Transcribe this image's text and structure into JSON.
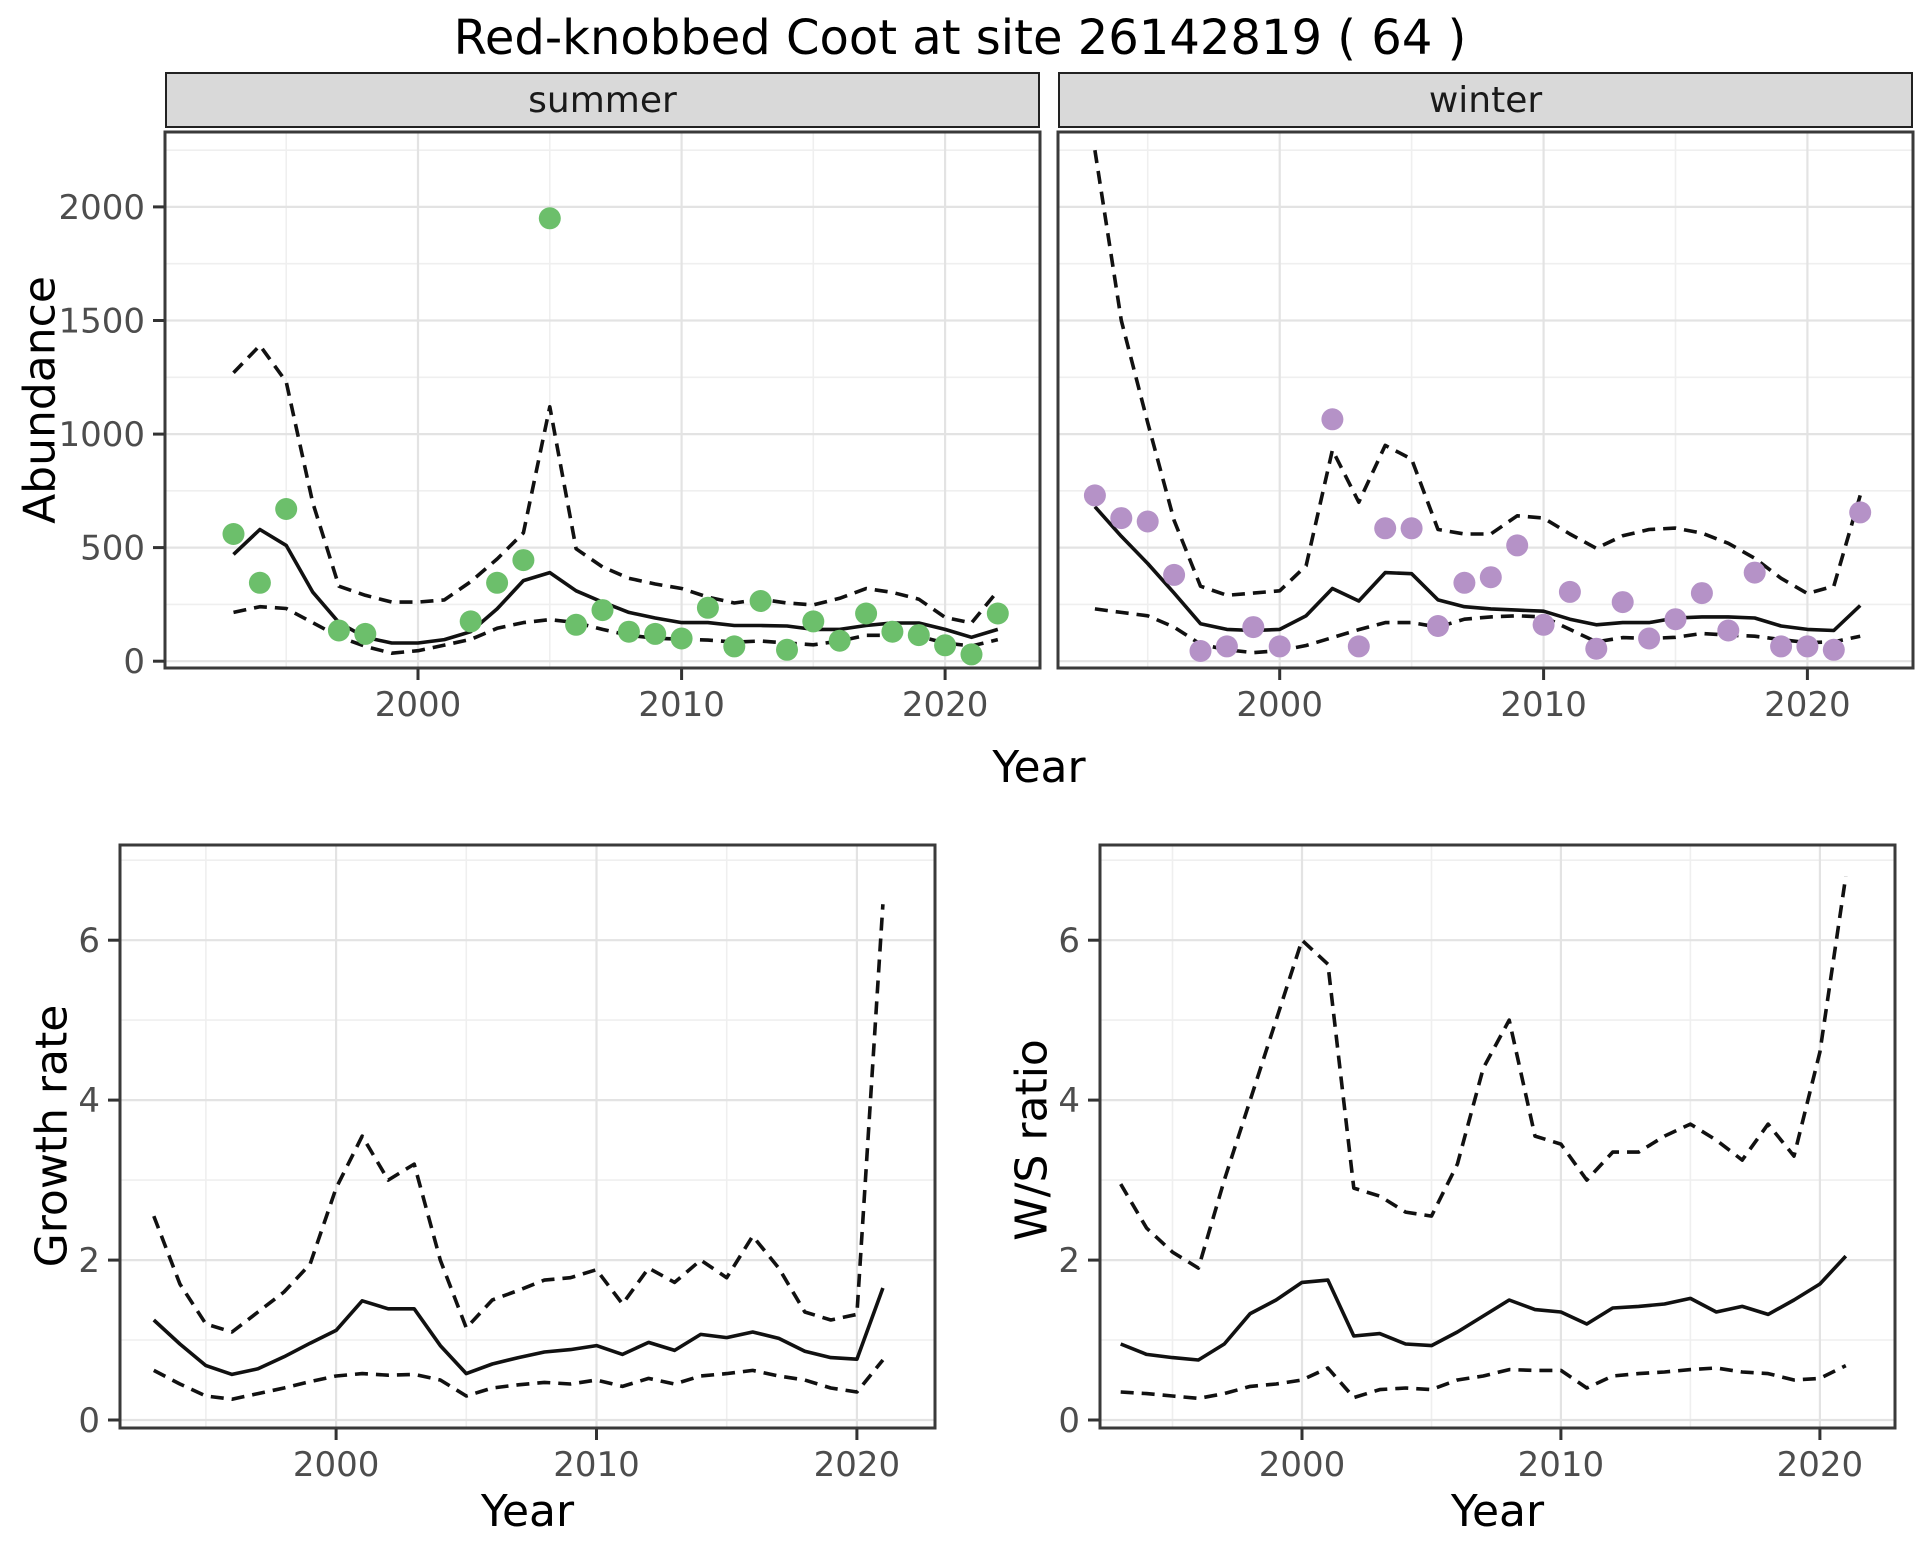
{
  "title": "Red-knobbed Coot at site 26142819 ( 64 )",
  "panels_strip": [
    "summer",
    "winter"
  ],
  "axis_titles": {
    "abundance": "Abundance",
    "year_top": "Year",
    "growth": "Growth rate",
    "year_growth": "Year",
    "ws": "W/S ratio",
    "year_ws": "Year"
  },
  "colors": {
    "summer_point": "#6cbf6b",
    "winter_point": "#b592c7",
    "line": "#111111",
    "strip_bg": "#d9d9d9",
    "grid_major": "#e3e3e3",
    "grid_minor": "#efefef",
    "panel_border": "#3a3a3a",
    "tick_label": "#4d4d4d"
  },
  "chart_data": [
    {
      "id": "abundance-summer",
      "type": "line+scatter",
      "facet": "summer",
      "ylabel": "Abundance",
      "xlabel": "Year",
      "x_domain": [
        1990.4,
        2023.6
      ],
      "y_domain": [
        -30,
        2330
      ],
      "x_major": [
        2000,
        2010,
        2020
      ],
      "x_minor": [
        1995,
        2005,
        2015
      ],
      "x_tick_labels": [
        "2000",
        "2010",
        "2020"
      ],
      "y_major": [
        0,
        500,
        1000,
        1500,
        2000
      ],
      "y_minor": [
        250,
        750,
        1250,
        1750,
        2250
      ],
      "y_tick_labels": [
        "0",
        "500",
        "1000",
        "1500",
        "2000"
      ],
      "years": [
        1993,
        1994,
        1995,
        1996,
        1997,
        1998,
        1999,
        2000,
        2001,
        2002,
        2003,
        2004,
        2005,
        2006,
        2007,
        2008,
        2009,
        2010,
        2011,
        2012,
        2013,
        2014,
        2015,
        2016,
        2017,
        2018,
        2019,
        2020,
        2021,
        2022
      ],
      "points": [
        560,
        345,
        670,
        null,
        135,
        120,
        null,
        null,
        null,
        175,
        345,
        445,
        1950,
        160,
        225,
        130,
        120,
        100,
        235,
        65,
        265,
        50,
        175,
        90,
        210,
        130,
        115,
        70,
        30,
        210
      ],
      "median": [
        470,
        580,
        510,
        305,
        170,
        105,
        80,
        80,
        95,
        130,
        230,
        355,
        390,
        310,
        260,
        215,
        190,
        170,
        170,
        157,
        157,
        155,
        140,
        140,
        157,
        168,
        168,
        140,
        105,
        140
      ],
      "upper": [
        1270,
        1390,
        1230,
        700,
        330,
        290,
        260,
        260,
        270,
        350,
        450,
        565,
        1120,
        495,
        415,
        365,
        340,
        320,
        282,
        256,
        273,
        256,
        248,
        277,
        320,
        303,
        273,
        193,
        168,
        310
      ],
      "lower": [
        215,
        240,
        232,
        170,
        108,
        65,
        35,
        46,
        71,
        96,
        145,
        170,
        183,
        170,
        140,
        114,
        101,
        97,
        93,
        84,
        89,
        80,
        72,
        89,
        114,
        114,
        110,
        80,
        67,
        95
      ],
      "point_color": "#6cbf6b"
    },
    {
      "id": "abundance-winter",
      "type": "line+scatter",
      "facet": "winter",
      "ylabel": "Abundance",
      "xlabel": "Year",
      "x_domain": [
        1991.6,
        2024.0
      ],
      "y_domain": [
        -30,
        2330
      ],
      "x_major": [
        2000,
        2010,
        2020
      ],
      "x_minor": [
        1995,
        2005,
        2015
      ],
      "x_tick_labels": [
        "2000",
        "2010",
        "2020"
      ],
      "y_major": [
        0,
        500,
        1000,
        1500,
        2000
      ],
      "y_minor": [
        250,
        750,
        1250,
        1750,
        2250
      ],
      "y_tick_labels": [],
      "years": [
        1993,
        1994,
        1995,
        1996,
        1997,
        1998,
        1999,
        2000,
        2001,
        2002,
        2003,
        2004,
        2005,
        2006,
        2007,
        2008,
        2009,
        2010,
        2011,
        2012,
        2013,
        2014,
        2015,
        2016,
        2017,
        2018,
        2019,
        2020,
        2021,
        2022
      ],
      "points": [
        730,
        630,
        615,
        380,
        45,
        65,
        150,
        65,
        null,
        1065,
        65,
        585,
        585,
        155,
        345,
        370,
        510,
        160,
        305,
        55,
        260,
        100,
        185,
        300,
        135,
        390,
        65,
        65,
        50,
        655
      ],
      "median": [
        680,
        550,
        430,
        300,
        165,
        140,
        135,
        140,
        200,
        320,
        265,
        390,
        385,
        270,
        240,
        230,
        225,
        220,
        185,
        160,
        170,
        170,
        190,
        195,
        195,
        190,
        155,
        140,
        135,
        245
      ],
      "upper": [
        2250,
        1500,
        1050,
        620,
        330,
        290,
        300,
        310,
        420,
        930,
        700,
        950,
        890,
        580,
        560,
        560,
        640,
        630,
        560,
        497,
        552,
        580,
        586,
        564,
        519,
        453,
        365,
        298,
        330,
        730
      ],
      "lower": [
        230,
        215,
        200,
        150,
        75,
        50,
        38,
        46,
        69,
        104,
        139,
        170,
        170,
        150,
        185,
        195,
        200,
        195,
        140,
        85,
        104,
        100,
        105,
        122,
        115,
        110,
        95,
        82,
        85,
        110
      ],
      "point_color": "#b592c7"
    },
    {
      "id": "growth-rate",
      "type": "line",
      "facet": null,
      "ylabel": "Growth rate",
      "xlabel": "Year",
      "x_domain": [
        1991.7,
        2023.0
      ],
      "y_domain": [
        -0.1,
        7.19
      ],
      "x_major": [
        2000,
        2010,
        2020
      ],
      "x_minor": [
        1995,
        2005,
        2015
      ],
      "x_tick_labels": [
        "2000",
        "2010",
        "2020"
      ],
      "y_major": [
        0,
        2,
        4,
        6
      ],
      "y_minor": [
        1,
        3,
        5,
        7
      ],
      "y_tick_labels": [
        "0",
        "2",
        "4",
        "6"
      ],
      "years": [
        1993,
        1994,
        1995,
        1996,
        1997,
        1998,
        1999,
        2000,
        2001,
        2002,
        2003,
        2004,
        2005,
        2006,
        2007,
        2008,
        2009,
        2010,
        2011,
        2012,
        2013,
        2014,
        2015,
        2016,
        2017,
        2018,
        2019,
        2020,
        2021
      ],
      "points": null,
      "median": [
        1.25,
        0.95,
        0.68,
        0.57,
        0.64,
        0.79,
        0.96,
        1.12,
        1.49,
        1.39,
        1.39,
        0.93,
        0.58,
        0.7,
        0.78,
        0.85,
        0.88,
        0.93,
        0.82,
        0.97,
        0.87,
        1.07,
        1.03,
        1.1,
        1.02,
        0.86,
        0.78,
        0.76,
        1.65
      ],
      "upper": [
        2.55,
        1.7,
        1.2,
        1.1,
        1.35,
        1.6,
        1.95,
        2.9,
        3.55,
        3.0,
        3.2,
        2.0,
        1.15,
        1.5,
        1.62,
        1.75,
        1.78,
        1.88,
        1.45,
        1.9,
        1.72,
        2.0,
        1.78,
        2.3,
        1.9,
        1.35,
        1.25,
        1.32,
        6.45
      ],
      "lower": [
        0.62,
        0.45,
        0.3,
        0.26,
        0.33,
        0.4,
        0.48,
        0.55,
        0.58,
        0.56,
        0.57,
        0.5,
        0.3,
        0.4,
        0.44,
        0.47,
        0.45,
        0.5,
        0.42,
        0.52,
        0.45,
        0.55,
        0.58,
        0.62,
        0.55,
        0.5,
        0.4,
        0.35,
        0.75
      ],
      "point_color": null
    },
    {
      "id": "ws-ratio",
      "type": "line",
      "facet": null,
      "ylabel": "W/S ratio",
      "xlabel": "Year",
      "x_domain": [
        1992.2,
        2022.9
      ],
      "y_domain": [
        -0.1,
        7.19
      ],
      "x_major": [
        2000,
        2010,
        2020
      ],
      "x_minor": [
        1995,
        2005,
        2015
      ],
      "x_tick_labels": [
        "2000",
        "2010",
        "2020"
      ],
      "y_major": [
        0,
        2,
        4,
        6
      ],
      "y_minor": [
        1,
        3,
        5,
        7
      ],
      "y_tick_labels": [
        "0",
        "2",
        "4",
        "6"
      ],
      "years": [
        1993,
        1994,
        1995,
        1996,
        1997,
        1998,
        1999,
        2000,
        2001,
        2002,
        2003,
        2004,
        2005,
        2006,
        2007,
        2008,
        2009,
        2010,
        2011,
        2012,
        2013,
        2014,
        2015,
        2016,
        2017,
        2018,
        2019,
        2020,
        2021
      ],
      "points": null,
      "median": [
        0.95,
        0.82,
        0.78,
        0.75,
        0.95,
        1.33,
        1.5,
        1.72,
        1.75,
        1.05,
        1.08,
        0.95,
        0.93,
        1.1,
        1.3,
        1.5,
        1.38,
        1.35,
        1.2,
        1.4,
        1.42,
        1.45,
        1.52,
        1.35,
        1.42,
        1.32,
        1.5,
        1.7,
        2.05
      ],
      "upper": [
        2.95,
        2.4,
        2.1,
        1.9,
        3.0,
        4.0,
        5.0,
        6.0,
        5.7,
        2.9,
        2.8,
        2.6,
        2.55,
        3.2,
        4.4,
        5.0,
        3.55,
        3.45,
        3.0,
        3.35,
        3.35,
        3.55,
        3.7,
        3.5,
        3.25,
        3.7,
        3.3,
        4.6,
        6.8
      ],
      "lower": [
        0.35,
        0.33,
        0.3,
        0.27,
        0.33,
        0.42,
        0.45,
        0.5,
        0.65,
        0.28,
        0.38,
        0.4,
        0.38,
        0.5,
        0.55,
        0.63,
        0.62,
        0.62,
        0.4,
        0.55,
        0.58,
        0.6,
        0.63,
        0.65,
        0.6,
        0.58,
        0.5,
        0.52,
        0.68
      ]
    }
  ]
}
